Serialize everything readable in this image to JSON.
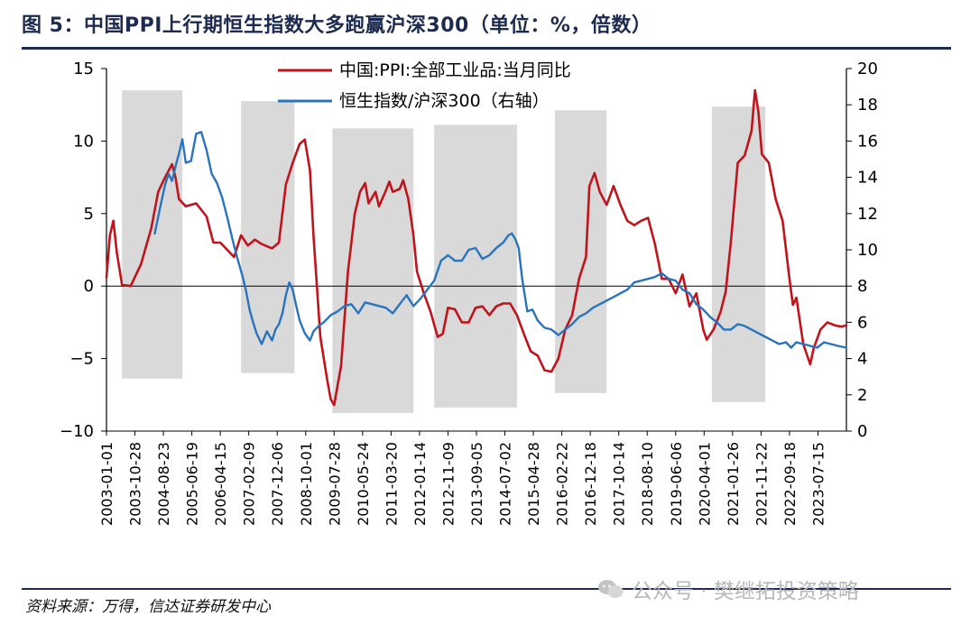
{
  "header": {
    "title": "图 5：中国PPI上行期恒生指数大多跑赢沪深300（单位：%，倍数）"
  },
  "footer": {
    "source": "资料来源：万得，信达证券研发中心",
    "watermark": "公众号 · 樊继拓投资策略"
  },
  "colors": {
    "ppi": "#c0141c",
    "ratio": "#2874bd",
    "shade": "#d9d9d9",
    "rule": "#1c2b4f"
  },
  "chart_data": {
    "type": "line",
    "title": "",
    "xlabel": "",
    "ylabel": "",
    "y_left_lim": [
      -10,
      15
    ],
    "y_right_lim": [
      0,
      20
    ],
    "y_left_ticks": [
      "15",
      "10",
      "5",
      "0",
      "−5",
      "−10"
    ],
    "y_right_ticks": [
      "20",
      "18",
      "16",
      "14",
      "12",
      "10",
      "8",
      "6",
      "4",
      "2",
      "0"
    ],
    "x_start": 2003.0,
    "x_end": 2024.45,
    "x_tick_labels": [
      "2003-01-01",
      "2003-10-28",
      "2004-08-23",
      "2005-06-19",
      "2006-04-15",
      "2007-02-09",
      "2007-12-06",
      "2008-10-01",
      "2009-07-28",
      "2010-05-24",
      "2011-03-20",
      "2012-01-14",
      "2012-11-09",
      "2013-09-05",
      "2014-07-02",
      "2015-04-28",
      "2016-02-22",
      "2016-12-18",
      "2017-10-14",
      "2018-08-10",
      "2019-06-06",
      "2020-04-01",
      "2021-01-26",
      "2021-11-22",
      "2022-09-18",
      "2023-07-15"
    ],
    "legend": [
      "中国:PPI:全部工业品:当月同比",
      "恒生指数/沪深300（右轴）"
    ],
    "shaded_periods": [
      {
        "start": 2003.45,
        "end": 2005.2,
        "y_top_right": 18.8,
        "y_bottom_right": 2.9
      },
      {
        "start": 2006.9,
        "end": 2008.45,
        "y_top_right": 18.2,
        "y_bottom_right": 3.2
      },
      {
        "start": 2009.55,
        "end": 2011.9,
        "y_top_right": 16.7,
        "y_bottom_right": 1.0
      },
      {
        "start": 2012.5,
        "end": 2014.9,
        "y_top_right": 16.9,
        "y_bottom_right": 1.3
      },
      {
        "start": 2016.0,
        "end": 2017.5,
        "y_top_right": 17.7,
        "y_bottom_right": 2.1
      },
      {
        "start": 2020.55,
        "end": 2022.1,
        "y_top_right": 17.9,
        "y_bottom_right": 1.6
      }
    ],
    "series": [
      {
        "name": "中国:PPI:全部工业品:当月同比",
        "axis": "left",
        "x": [
          2003.0,
          2003.1,
          2003.2,
          2003.3,
          2003.45,
          2003.7,
          2004.0,
          2004.3,
          2004.5,
          2004.7,
          2004.9,
          2005.0,
          2005.1,
          2005.3,
          2005.6,
          2005.9,
          2006.1,
          2006.3,
          2006.5,
          2006.7,
          2006.9,
          2007.1,
          2007.3,
          2007.5,
          2007.8,
          2008.0,
          2008.2,
          2008.4,
          2008.6,
          2008.75,
          2008.9,
          2009.0,
          2009.2,
          2009.4,
          2009.5,
          2009.6,
          2009.8,
          2010.0,
          2010.2,
          2010.35,
          2010.5,
          2010.6,
          2010.8,
          2010.9,
          2011.1,
          2011.2,
          2011.3,
          2011.5,
          2011.6,
          2011.75,
          2011.9,
          2012.0,
          2012.2,
          2012.4,
          2012.6,
          2012.75,
          2012.9,
          2013.1,
          2013.3,
          2013.5,
          2013.7,
          2013.9,
          2014.1,
          2014.3,
          2014.5,
          2014.7,
          2014.9,
          2015.1,
          2015.3,
          2015.5,
          2015.7,
          2015.9,
          2016.1,
          2016.3,
          2016.5,
          2016.7,
          2016.9,
          2017.0,
          2017.15,
          2017.3,
          2017.5,
          2017.7,
          2017.9,
          2018.1,
          2018.3,
          2018.5,
          2018.7,
          2018.9,
          2019.1,
          2019.3,
          2019.5,
          2019.7,
          2019.9,
          2020.1,
          2020.3,
          2020.4,
          2020.6,
          2020.8,
          2020.95,
          2021.1,
          2021.3,
          2021.5,
          2021.7,
          2021.8,
          2021.9,
          2022.0,
          2022.2,
          2022.4,
          2022.6,
          2022.8,
          2022.9,
          2023.0,
          2023.2,
          2023.4,
          2023.5,
          2023.7,
          2023.9,
          2024.1,
          2024.3,
          2024.45
        ],
        "values": [
          0.6,
          3.5,
          4.5,
          2.3,
          0.1,
          0.0,
          1.5,
          4.0,
          6.5,
          7.5,
          8.4,
          7.5,
          6.0,
          5.5,
          5.7,
          4.8,
          3.0,
          3.0,
          2.5,
          2.0,
          3.5,
          2.8,
          3.2,
          2.9,
          2.6,
          3.0,
          7.0,
          8.5,
          9.8,
          10.1,
          8.0,
          3.5,
          -3.5,
          -6.5,
          -7.8,
          -8.2,
          -5.5,
          1.0,
          5.0,
          6.5,
          7.1,
          5.7,
          6.5,
          5.5,
          6.6,
          7.2,
          6.5,
          6.7,
          7.3,
          6.0,
          3.5,
          1.0,
          -0.5,
          -1.8,
          -3.5,
          -3.3,
          -1.5,
          -1.6,
          -2.5,
          -2.5,
          -1.5,
          -1.4,
          -2.0,
          -1.4,
          -1.2,
          -1.2,
          -2.0,
          -3.3,
          -4.5,
          -4.8,
          -5.8,
          -5.9,
          -5.0,
          -3.0,
          -2.0,
          0.5,
          2.0,
          6.9,
          7.8,
          6.5,
          5.6,
          6.9,
          5.6,
          4.5,
          4.2,
          4.5,
          4.7,
          2.9,
          0.5,
          0.5,
          -0.5,
          0.8,
          -1.4,
          -0.5,
          -3.0,
          -3.7,
          -3.0,
          -1.8,
          -0.4,
          3.0,
          8.5,
          9.0,
          10.7,
          13.5,
          12.0,
          9.1,
          8.5,
          6.0,
          4.5,
          0.5,
          -1.3,
          -0.8,
          -4.0,
          -5.4,
          -4.3,
          -3.0,
          -2.5,
          -2.7,
          -2.8,
          -2.7
        ],
        "color": "#c0141c"
      },
      {
        "name": "恒生指数/沪深300（右轴）",
        "axis": "right",
        "x": [
          2004.4,
          2004.55,
          2004.7,
          2004.8,
          2004.9,
          2005.0,
          2005.1,
          2005.2,
          2005.3,
          2005.45,
          2005.6,
          2005.75,
          2005.9,
          2006.05,
          2006.2,
          2006.35,
          2006.5,
          2006.65,
          2006.8,
          2006.95,
          2007.05,
          2007.15,
          2007.25,
          2007.35,
          2007.5,
          2007.65,
          2007.8,
          2007.9,
          2008.0,
          2008.1,
          2008.2,
          2008.3,
          2008.4,
          2008.5,
          2008.6,
          2008.75,
          2008.9,
          2009.0,
          2009.15,
          2009.3,
          2009.5,
          2009.7,
          2009.9,
          2010.1,
          2010.3,
          2010.5,
          2010.7,
          2010.9,
          2011.1,
          2011.3,
          2011.5,
          2011.7,
          2011.9,
          2012.1,
          2012.3,
          2012.5,
          2012.7,
          2012.9,
          2013.1,
          2013.3,
          2013.5,
          2013.7,
          2013.9,
          2014.1,
          2014.3,
          2014.5,
          2014.65,
          2014.75,
          2014.85,
          2014.95,
          2015.05,
          2015.2,
          2015.35,
          2015.5,
          2015.7,
          2015.9,
          2016.1,
          2016.3,
          2016.5,
          2016.7,
          2016.9,
          2017.1,
          2017.3,
          2017.5,
          2017.7,
          2017.9,
          2018.1,
          2018.3,
          2018.5,
          2018.7,
          2018.9,
          2019.1,
          2019.3,
          2019.5,
          2019.7,
          2019.9,
          2020.1,
          2020.3,
          2020.5,
          2020.7,
          2020.9,
          2021.1,
          2021.3,
          2021.5,
          2021.7,
          2021.9,
          2022.1,
          2022.3,
          2022.5,
          2022.7,
          2022.85,
          2023.0,
          2023.2,
          2023.4,
          2023.6,
          2023.8,
          2024.0,
          2024.2,
          2024.45
        ],
        "values": [
          10.9,
          12.3,
          13.6,
          14.2,
          13.8,
          14.6,
          15.3,
          16.1,
          14.8,
          14.9,
          16.4,
          16.5,
          15.5,
          14.2,
          13.7,
          12.9,
          11.8,
          10.6,
          9.5,
          8.5,
          7.7,
          6.7,
          6.0,
          5.4,
          4.8,
          5.5,
          5.0,
          5.6,
          5.9,
          6.5,
          7.5,
          8.2,
          7.8,
          6.9,
          6.1,
          5.4,
          5.0,
          5.5,
          5.8,
          6.0,
          6.4,
          6.6,
          6.9,
          7.0,
          6.5,
          7.1,
          7.0,
          6.9,
          6.8,
          6.5,
          7.0,
          7.5,
          6.9,
          7.3,
          7.8,
          8.3,
          9.4,
          9.7,
          9.4,
          9.4,
          10.0,
          10.1,
          9.5,
          9.7,
          10.1,
          10.4,
          10.8,
          10.9,
          10.6,
          10.1,
          8.4,
          6.6,
          6.7,
          6.1,
          5.7,
          5.6,
          5.3,
          5.6,
          5.9,
          6.3,
          6.5,
          6.8,
          7.0,
          7.2,
          7.4,
          7.6,
          7.8,
          8.2,
          8.3,
          8.4,
          8.5,
          8.7,
          8.4,
          8.3,
          7.8,
          7.6,
          7.0,
          6.7,
          6.3,
          6.0,
          5.6,
          5.6,
          5.9,
          5.8,
          5.6,
          5.4,
          5.2,
          5.0,
          4.8,
          4.9,
          4.6,
          4.9,
          4.8,
          4.7,
          4.6,
          4.9,
          4.8,
          4.7,
          4.6
        ],
        "color": "#2874bd"
      }
    ]
  }
}
